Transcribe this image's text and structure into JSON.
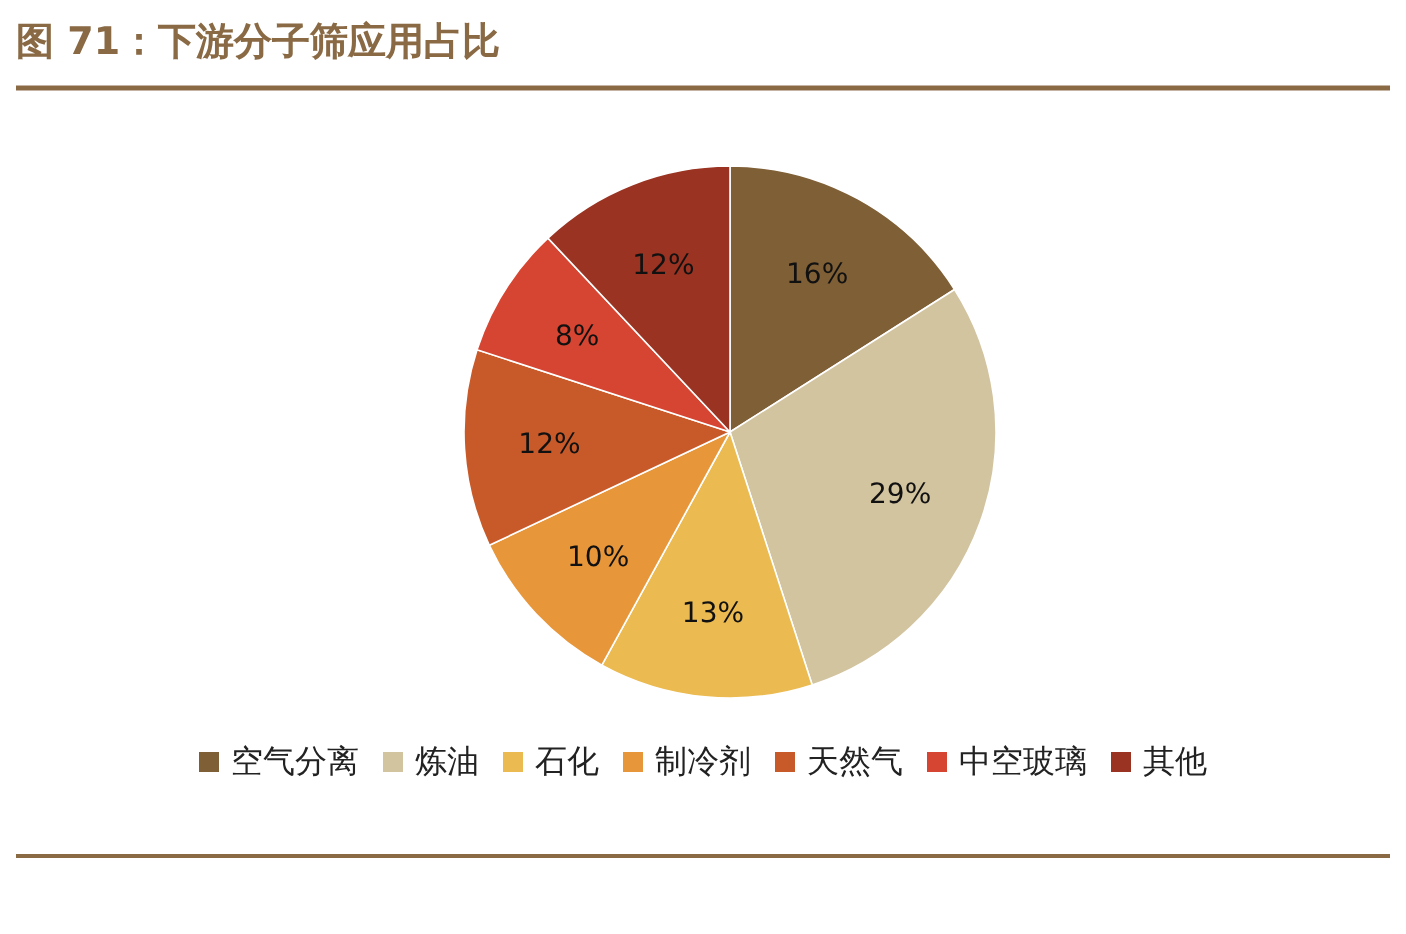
{
  "chart_data": {
    "type": "pie",
    "title": "图 71：下游分子筛应用占比",
    "categories": [
      "空气分离",
      "炼油",
      "石化",
      "制冷剂",
      "天然气",
      "中空玻璃",
      "其他"
    ],
    "values": [
      16,
      29,
      13,
      10,
      12,
      8,
      12
    ],
    "colors": [
      "#7f5f36",
      "#d3c4a0",
      "#ebbb52",
      "#e8963a",
      "#c85a2a",
      "#d64531",
      "#9a3322"
    ],
    "value_labels": [
      "16%",
      "29%",
      "13%",
      "10%",
      "12%",
      "8%",
      "12%"
    ],
    "legend": "bottom"
  }
}
